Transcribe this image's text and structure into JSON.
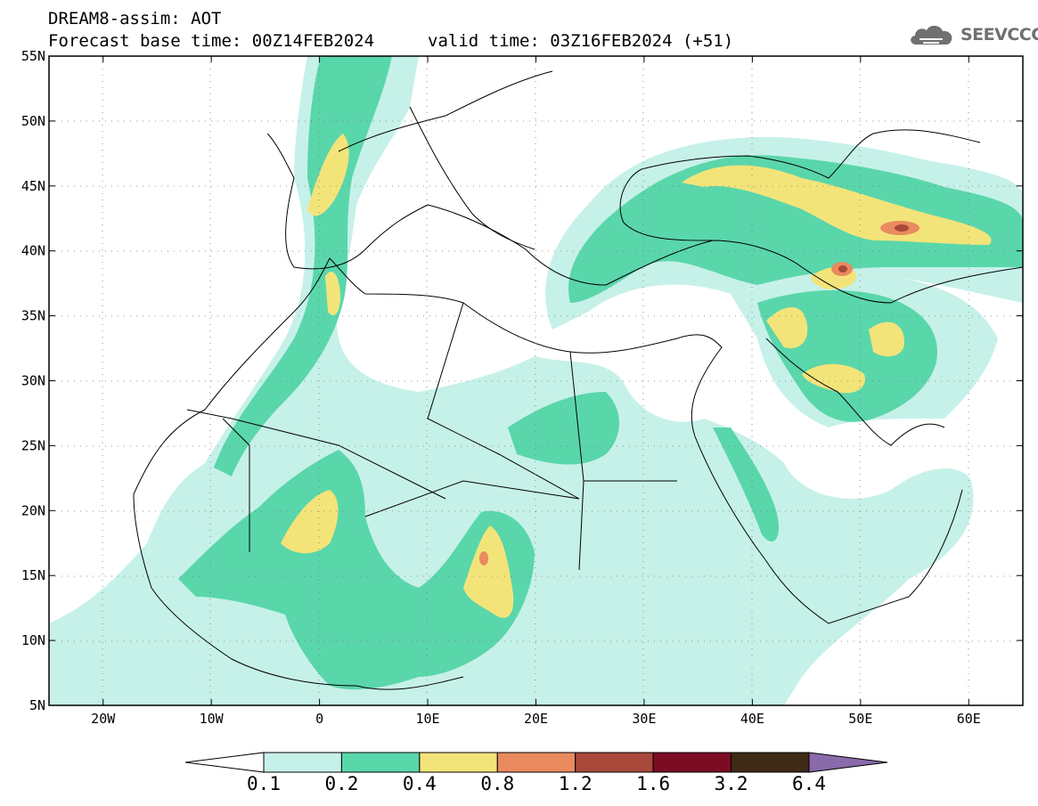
{
  "header": {
    "title_line1": "DREAM8-assim: AOT",
    "title_line2": "Forecast base time: 00Z14FEB2024",
    "valid_time": "valid time: 03Z16FEB2024 (+51)"
  },
  "logo": {
    "text": "SEEVCCC",
    "icon": "cloud-icon"
  },
  "map": {
    "lon_range": [
      -25,
      65
    ],
    "lat_range": [
      5,
      55
    ],
    "lat_ticks": [
      {
        "value": 55,
        "label": "55N"
      },
      {
        "value": 50,
        "label": "50N"
      },
      {
        "value": 45,
        "label": "45N"
      },
      {
        "value": 40,
        "label": "40N"
      },
      {
        "value": 35,
        "label": "35N"
      },
      {
        "value": 30,
        "label": "30N"
      },
      {
        "value": 25,
        "label": "25N"
      },
      {
        "value": 20,
        "label": "20N"
      },
      {
        "value": 15,
        "label": "15N"
      },
      {
        "value": 10,
        "label": "10N"
      },
      {
        "value": 5,
        "label": "5N"
      }
    ],
    "lon_ticks": [
      {
        "value": -20,
        "label": "20W"
      },
      {
        "value": -10,
        "label": "10W"
      },
      {
        "value": 0,
        "label": "0"
      },
      {
        "value": 10,
        "label": "10E"
      },
      {
        "value": 20,
        "label": "20E"
      },
      {
        "value": 30,
        "label": "30E"
      },
      {
        "value": 40,
        "label": "40E"
      },
      {
        "value": 50,
        "label": "50E"
      },
      {
        "value": 60,
        "label": "60E"
      }
    ],
    "grid": "dotted"
  },
  "colorbar": {
    "labels": [
      "0.1",
      "0.2",
      "0.4",
      "0.8",
      "1.2",
      "1.6",
      "3.2",
      "6.4"
    ],
    "colors": [
      "#ffffff",
      "#c6f1e8",
      "#5ad6ab",
      "#f3e47a",
      "#e98a5f",
      "#a8483a",
      "#7c0c24",
      "#3f2a16",
      "#8a6aaa"
    ]
  },
  "fields": {
    "colors": {
      "low": "#c6f1e8",
      "mid": "#5ad6ab",
      "high": "#f3e47a",
      "peak": "#e98a5f",
      "top": "#a8483a"
    }
  }
}
